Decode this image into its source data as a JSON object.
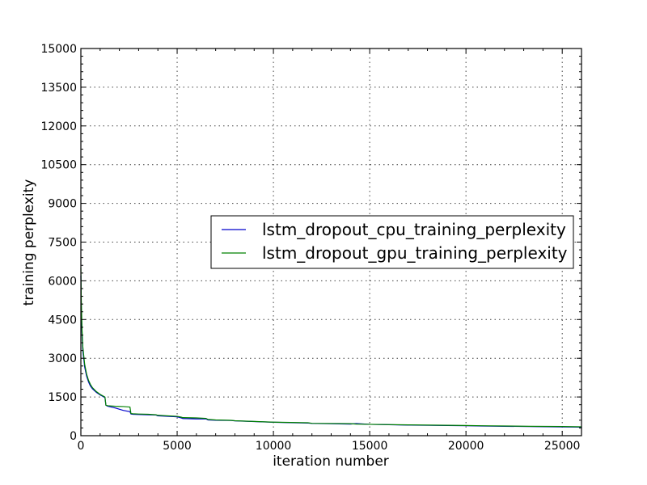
{
  "chart_data": {
    "type": "line",
    "title": "",
    "xlabel": "iteration number",
    "ylabel": "training perplexity",
    "xlim": [
      0,
      26000
    ],
    "ylim": [
      0,
      15000
    ],
    "xticks": [
      0,
      5000,
      10000,
      15000,
      20000,
      25000
    ],
    "yticks": [
      0,
      1500,
      3000,
      4500,
      6000,
      7500,
      9000,
      10500,
      12000,
      13500,
      15000
    ],
    "grid": true,
    "legend_position": "center-right",
    "series": [
      {
        "name": "lstm_dropout_cpu_training_perplexity",
        "color": "#0000cc",
        "x": [
          0,
          20,
          60,
          100,
          200,
          300,
          400,
          500,
          600,
          800,
          1000,
          1250,
          1300,
          1400,
          1800,
          2200,
          2550,
          2600,
          2700,
          3000,
          3500,
          3900,
          4000,
          5000,
          5200,
          5300,
          6000,
          6500,
          6600,
          7000,
          7800,
          8000,
          10000,
          11800,
          12000,
          14000,
          14300,
          15000,
          17000,
          20000,
          20800,
          22000,
          23300,
          25000,
          26000
        ],
        "y": [
          6200,
          5000,
          3900,
          3300,
          2650,
          2300,
          2080,
          1920,
          1820,
          1680,
          1580,
          1480,
          1180,
          1140,
          1070,
          980,
          930,
          840,
          830,
          820,
          810,
          800,
          770,
          730,
          690,
          665,
          650,
          650,
          610,
          600,
          590,
          575,
          520,
          490,
          475,
          450,
          470,
          440,
          410,
          385,
          375,
          365,
          355,
          340,
          330
        ]
      },
      {
        "name": "lstm_dropout_gpu_training_perplexity",
        "color": "#008000",
        "x": [
          0,
          20,
          60,
          100,
          200,
          300,
          400,
          500,
          600,
          800,
          1000,
          1250,
          1300,
          1400,
          1800,
          2200,
          2550,
          2600,
          2700,
          3000,
          3500,
          3900,
          4000,
          5000,
          5200,
          5300,
          6000,
          6500,
          6600,
          7000,
          7800,
          8000,
          10000,
          11800,
          12000,
          14000,
          14300,
          15000,
          17000,
          20000,
          20800,
          22000,
          23300,
          25000,
          26000
        ],
        "y": [
          6500,
          5300,
          4100,
          3450,
          2750,
          2380,
          2140,
          1980,
          1860,
          1710,
          1600,
          1500,
          1180,
          1160,
          1140,
          1130,
          1110,
          860,
          850,
          840,
          830,
          810,
          790,
          750,
          720,
          700,
          690,
          670,
          630,
          610,
          595,
          580,
          525,
          500,
          480,
          465,
          450,
          440,
          420,
          395,
          385,
          375,
          365,
          355,
          345
        ]
      }
    ]
  }
}
